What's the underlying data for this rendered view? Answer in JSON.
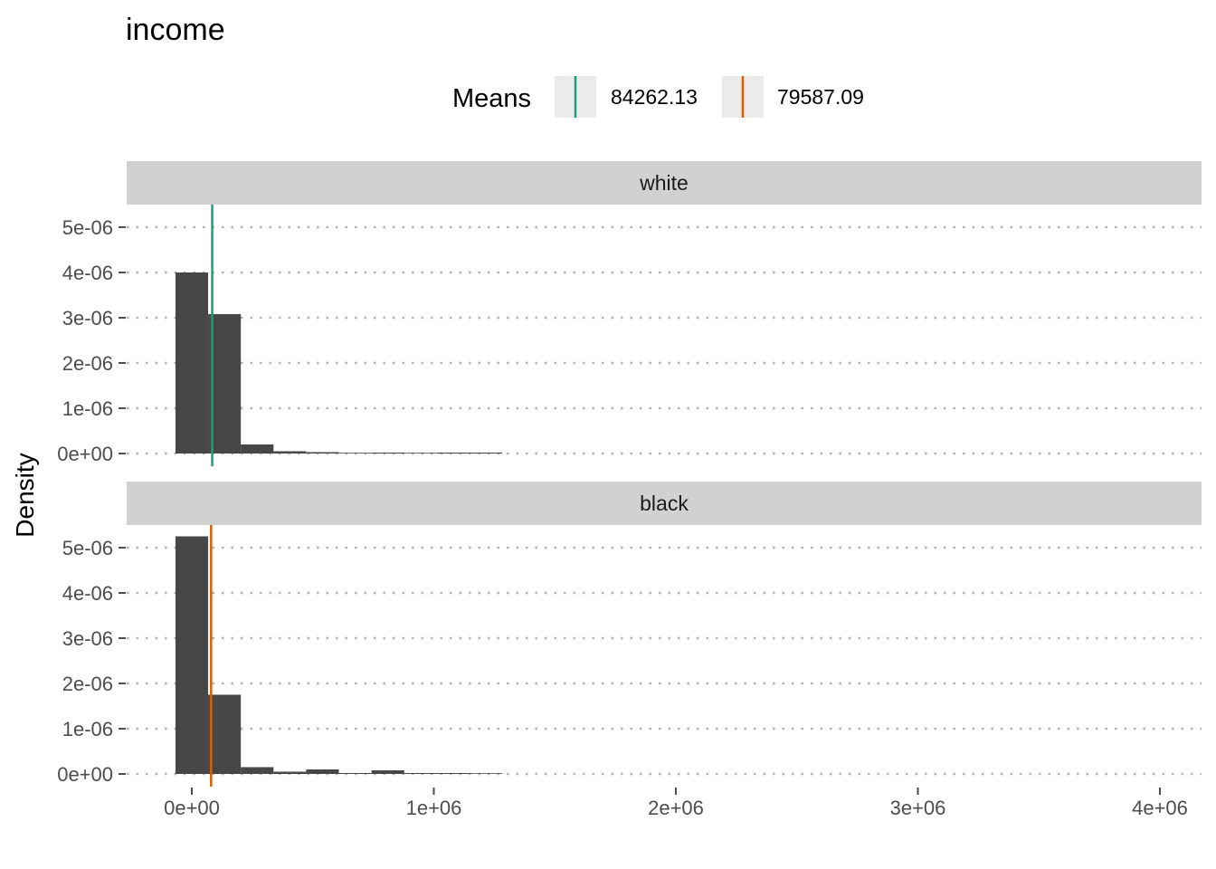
{
  "chart_data": {
    "type": "bar",
    "title": "income",
    "xlabel": "",
    "ylabel": "Density",
    "xlim": [
      -200000,
      4150000
    ],
    "ylim": [
      -2.5e-07,
      5.5e-06
    ],
    "x_ticks": [
      0,
      1000000,
      2000000,
      3000000,
      4000000
    ],
    "x_tick_labels": [
      "0e+00",
      "1e+06",
      "2e+06",
      "3e+06",
      "4e+06"
    ],
    "y_ticks": [
      0,
      1e-06,
      2e-06,
      3e-06,
      4e-06,
      5e-06
    ],
    "y_tick_labels": [
      "0e+00",
      "1e-06",
      "2e-06",
      "3e-06",
      "4e-06",
      "5e-06"
    ],
    "grid": "horizontal-dotted",
    "legend": {
      "title": "Means",
      "position": "top",
      "entries": [
        {
          "label": "84262.13",
          "color": "#1b9e77"
        },
        {
          "label": "79587.09",
          "color": "#d95f02"
        }
      ]
    },
    "bin_width": 135000,
    "bin_starts": [
      -67500,
      67500,
      202500,
      337500,
      472500,
      607500,
      742500,
      877500,
      1012500,
      1147500
    ],
    "panels": [
      {
        "strip": "white",
        "mean": 84262.13,
        "mean_color": "#1b9e77",
        "densities": [
          4e-06,
          3.08e-06,
          2e-07,
          5e-08,
          3e-08,
          1e-08,
          2e-08,
          1e-08,
          2e-08,
          2e-08
        ]
      },
      {
        "strip": "black",
        "mean": 79587.09,
        "mean_color": "#d95f02",
        "densities": [
          5.25e-06,
          1.75e-06,
          1.5e-07,
          5e-08,
          1e-07,
          2e-08,
          8e-08,
          2e-08,
          2e-08,
          0.0
        ]
      }
    ],
    "bar_color": "#474747",
    "strip_color": "#d1d1d1"
  }
}
